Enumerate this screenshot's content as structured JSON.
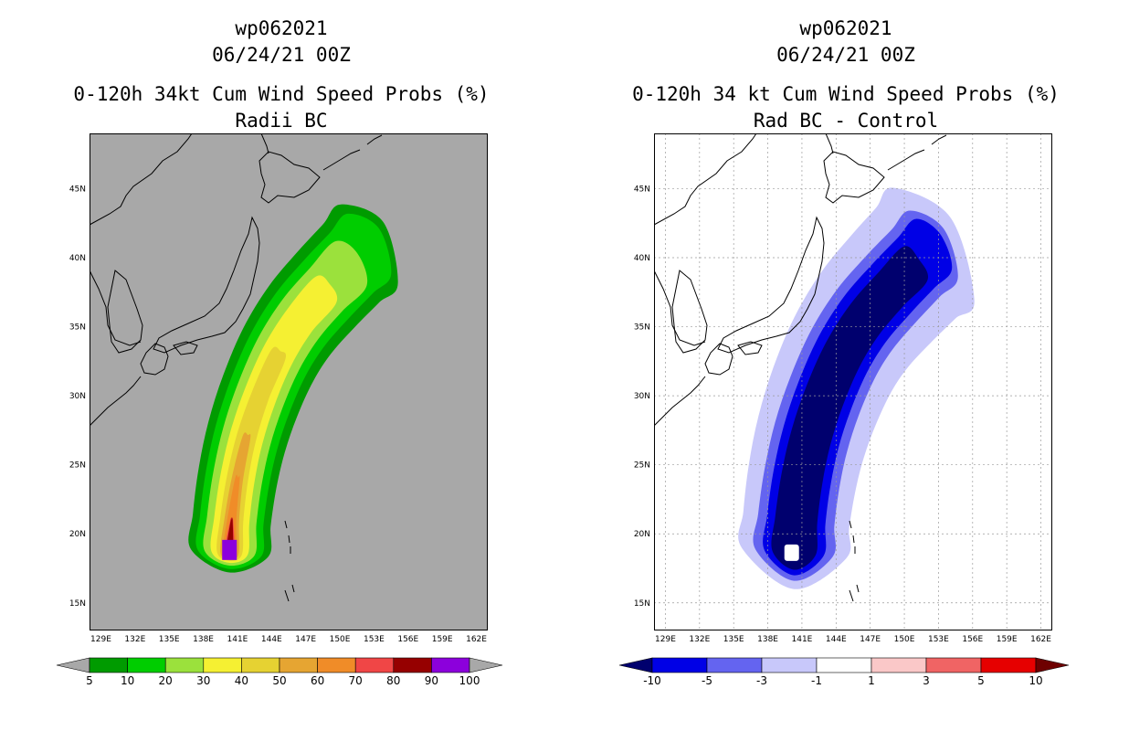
{
  "chart_data": [
    {
      "type": "heatmap",
      "title_lines": [
        "wp062021",
        "06/24/21 00Z",
        "0-120h 34kt Cum Wind Speed Probs (%)",
        "Radii BC"
      ],
      "xticks": [
        "129E",
        "132E",
        "135E",
        "138E",
        "141E",
        "144E",
        "147E",
        "150E",
        "153E",
        "156E",
        "159E",
        "162E"
      ],
      "yticks": [
        "45N",
        "40N",
        "35N",
        "30N",
        "25N",
        "20N",
        "15N"
      ],
      "xlim": [
        128,
        163
      ],
      "ylim": [
        13,
        49
      ],
      "background_color": "#a8a8a8",
      "colorbar": {
        "labels": [
          "5",
          "10",
          "20",
          "30",
          "40",
          "50",
          "60",
          "70",
          "80",
          "90",
          "100"
        ],
        "colors": [
          "#009b00",
          "#00cd00",
          "#9be13c",
          "#f5f032",
          "#e6d232",
          "#e6a532",
          "#f08c28",
          "#f04646",
          "#960000",
          "#8c00dc"
        ],
        "under_color": "#a8a8a8",
        "over_color": "#a8a8a8"
      },
      "contour_levels": [
        5,
        10,
        20,
        30,
        40,
        50,
        60,
        70,
        80,
        90
      ]
    },
    {
      "type": "heatmap",
      "title_lines": [
        "wp062021",
        "06/24/21 00Z",
        "0-120h 34 kt Cum Wind Speed Probs (%)",
        "Rad BC - Control"
      ],
      "xticks": [
        "129E",
        "132E",
        "135E",
        "138E",
        "141E",
        "144E",
        "147E",
        "150E",
        "153E",
        "156E",
        "159E",
        "162E"
      ],
      "yticks": [
        "45N",
        "40N",
        "35N",
        "30N",
        "25N",
        "20N",
        "15N"
      ],
      "xlim": [
        128,
        163
      ],
      "ylim": [
        13,
        49
      ],
      "background_color": "#ffffff",
      "colorbar": {
        "labels": [
          "-10",
          "-5",
          "-3",
          "-1",
          "1",
          "3",
          "5",
          "10"
        ],
        "colors": [
          "#0000e6",
          "#6464f0",
          "#c8c8fa",
          "#ffffff",
          "#fac8c8",
          "#f06464",
          "#e60000"
        ],
        "under_color": "#00006e",
        "over_color": "#6e0000"
      },
      "contour_levels": [
        -1,
        -3,
        -5,
        -10
      ]
    }
  ]
}
